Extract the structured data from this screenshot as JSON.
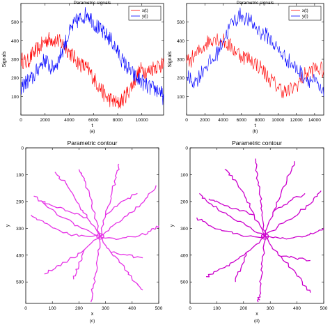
{
  "chart_data": [
    {
      "id": "a",
      "type": "line",
      "caption": "(a)",
      "title": "Parametric signals",
      "xlabel": "t",
      "ylabel": "Signals",
      "xlim": [
        0,
        11800
      ],
      "ylim": [
        0,
        600
      ],
      "xticks": [
        0,
        2000,
        4000,
        6000,
        8000,
        10000
      ],
      "yticks": [
        100,
        200,
        300,
        400,
        500
      ],
      "legend_position": "top-right",
      "series": [
        {
          "name": "x(t)",
          "color": "#ff0000",
          "x": [
            0,
            500,
            1000,
            1500,
            2000,
            2500,
            3000,
            3500,
            4000,
            4500,
            5000,
            5500,
            6000,
            6500,
            7000,
            7500,
            8000,
            8500,
            9000,
            9500,
            10000,
            10500,
            11000,
            11500,
            11800
          ],
          "y": [
            300,
            280,
            330,
            360,
            400,
            410,
            400,
            380,
            340,
            300,
            270,
            250,
            200,
            150,
            100,
            80,
            60,
            90,
            140,
            200,
            250,
            230,
            260,
            270,
            260
          ]
        },
        {
          "name": "y(t)",
          "color": "#0000ff",
          "x": [
            0,
            500,
            1000,
            1500,
            2000,
            2500,
            3000,
            3500,
            4000,
            4500,
            5000,
            5500,
            6000,
            6500,
            7000,
            7500,
            8000,
            8500,
            9000,
            9500,
            10000,
            10500,
            11000,
            11500,
            11800
          ],
          "y": [
            150,
            180,
            200,
            260,
            300,
            250,
            280,
            360,
            440,
            500,
            520,
            550,
            500,
            460,
            430,
            400,
            340,
            280,
            240,
            200,
            180,
            150,
            140,
            130,
            90
          ]
        }
      ]
    },
    {
      "id": "b",
      "type": "line",
      "caption": "(b)",
      "title": "Parametric signals",
      "xlabel": "t",
      "ylabel": "Signals",
      "xlim": [
        0,
        15000
      ],
      "ylim": [
        0,
        600
      ],
      "xticks": [
        0,
        2000,
        4000,
        6000,
        8000,
        10000,
        12000,
        14000
      ],
      "yticks": [
        100,
        200,
        300,
        400,
        500
      ],
      "legend_position": "top-right",
      "series": [
        {
          "name": "x(t)",
          "color": "#ff0000",
          "x": [
            0,
            1000,
            2000,
            3000,
            4000,
            5000,
            6000,
            7000,
            8000,
            9000,
            10000,
            11000,
            12000,
            13000,
            14000,
            15000
          ],
          "y": [
            280,
            320,
            380,
            420,
            400,
            360,
            320,
            300,
            260,
            200,
            150,
            120,
            160,
            220,
            250,
            240
          ]
        },
        {
          "name": "y(t)",
          "color": "#0000ff",
          "x": [
            0,
            1000,
            2000,
            3000,
            4000,
            5000,
            6000,
            7000,
            8000,
            9000,
            10000,
            11000,
            12000,
            13000,
            14000,
            15000
          ],
          "y": [
            200,
            180,
            260,
            300,
            400,
            500,
            540,
            500,
            450,
            420,
            350,
            300,
            250,
            200,
            180,
            100
          ]
        }
      ]
    },
    {
      "id": "c",
      "type": "contour",
      "caption": "(c)",
      "title": "Parametric contour",
      "xlabel": "x",
      "ylabel": "y",
      "xlim": [
        0,
        500
      ],
      "ylim": [
        0,
        580
      ],
      "xticks": [
        0,
        100,
        200,
        300,
        400,
        500
      ],
      "yticks": [
        0,
        100,
        200,
        300,
        400,
        500
      ],
      "color": "#e633e6",
      "center": [
        280,
        330
      ],
      "arms": [
        [
          [
            280,
            330
          ],
          [
            230,
            260
          ],
          [
            200,
            210
          ],
          [
            150,
            130
          ],
          [
            110,
            90
          ]
        ],
        [
          [
            280,
            330
          ],
          [
            260,
            250
          ],
          [
            240,
            180
          ],
          [
            220,
            120
          ],
          [
            200,
            80
          ]
        ],
        [
          [
            280,
            330
          ],
          [
            300,
            250
          ],
          [
            320,
            180
          ],
          [
            340,
            110
          ],
          [
            350,
            60
          ]
        ],
        [
          [
            280,
            330
          ],
          [
            340,
            280
          ],
          [
            400,
            240
          ],
          [
            450,
            190
          ],
          [
            490,
            140
          ]
        ],
        [
          [
            280,
            330
          ],
          [
            350,
            340
          ],
          [
            420,
            330
          ],
          [
            470,
            310
          ],
          [
            500,
            290
          ]
        ],
        [
          [
            280,
            330
          ],
          [
            320,
            390
          ],
          [
            370,
            440
          ],
          [
            410,
            500
          ],
          [
            440,
            530
          ]
        ],
        [
          [
            280,
            330
          ],
          [
            270,
            410
          ],
          [
            260,
            480
          ],
          [
            250,
            540
          ],
          [
            245,
            575
          ]
        ],
        [
          [
            280,
            330
          ],
          [
            220,
            380
          ],
          [
            160,
            420
          ],
          [
            110,
            450
          ],
          [
            70,
            470
          ]
        ],
        [
          [
            280,
            330
          ],
          [
            200,
            330
          ],
          [
            130,
            310
          ],
          [
            70,
            280
          ],
          [
            20,
            250
          ]
        ],
        [
          [
            280,
            330
          ],
          [
            210,
            300
          ],
          [
            140,
            260
          ],
          [
            80,
            220
          ],
          [
            30,
            180
          ]
        ],
        [
          [
            230,
            260
          ],
          [
            170,
            240
          ],
          [
            110,
            220
          ],
          [
            60,
            200
          ]
        ],
        [
          [
            300,
            250
          ],
          [
            360,
            200
          ],
          [
            420,
            170
          ]
        ],
        [
          [
            320,
            390
          ],
          [
            380,
            400
          ],
          [
            440,
            410
          ]
        ],
        [
          [
            220,
            380
          ],
          [
            200,
            440
          ],
          [
            180,
            490
          ]
        ]
      ]
    },
    {
      "id": "d",
      "type": "contour",
      "caption": "(d)",
      "title": "Parametric contour",
      "xlabel": "x",
      "ylabel": "y",
      "xlim": [
        0,
        500
      ],
      "ylim": [
        0,
        580
      ],
      "xticks": [
        0,
        100,
        200,
        300,
        400,
        500
      ],
      "yticks": [
        0,
        100,
        200,
        300,
        400,
        500
      ],
      "color": "#cc00cc",
      "center": [
        280,
        330
      ],
      "arms": [
        [
          [
            280,
            330
          ],
          [
            240,
            250
          ],
          [
            210,
            190
          ],
          [
            170,
            120
          ],
          [
            130,
            80
          ]
        ],
        [
          [
            280,
            330
          ],
          [
            270,
            240
          ],
          [
            260,
            160
          ],
          [
            250,
            90
          ],
          [
            245,
            40
          ]
        ],
        [
          [
            280,
            330
          ],
          [
            310,
            240
          ],
          [
            340,
            170
          ],
          [
            370,
            100
          ],
          [
            390,
            50
          ]
        ],
        [
          [
            280,
            330
          ],
          [
            350,
            280
          ],
          [
            410,
            240
          ],
          [
            460,
            200
          ],
          [
            490,
            160
          ]
        ],
        [
          [
            280,
            330
          ],
          [
            360,
            340
          ],
          [
            430,
            330
          ],
          [
            480,
            310
          ],
          [
            500,
            300
          ]
        ],
        [
          [
            280,
            330
          ],
          [
            330,
            400
          ],
          [
            380,
            450
          ],
          [
            420,
            500
          ],
          [
            450,
            540
          ]
        ],
        [
          [
            280,
            330
          ],
          [
            270,
            420
          ],
          [
            265,
            490
          ],
          [
            260,
            550
          ],
          [
            255,
            575
          ]
        ],
        [
          [
            280,
            330
          ],
          [
            210,
            390
          ],
          [
            150,
            430
          ],
          [
            100,
            460
          ],
          [
            60,
            480
          ]
        ],
        [
          [
            280,
            330
          ],
          [
            200,
            330
          ],
          [
            130,
            310
          ],
          [
            70,
            290
          ],
          [
            25,
            260
          ]
        ],
        [
          [
            280,
            330
          ],
          [
            210,
            290
          ],
          [
            140,
            250
          ],
          [
            80,
            210
          ],
          [
            35,
            170
          ]
        ],
        [
          [
            240,
            250
          ],
          [
            180,
            230
          ],
          [
            120,
            210
          ],
          [
            70,
            190
          ]
        ],
        [
          [
            310,
            240
          ],
          [
            370,
            200
          ],
          [
            430,
            170
          ]
        ],
        [
          [
            330,
            400
          ],
          [
            390,
            410
          ],
          [
            450,
            420
          ]
        ],
        [
          [
            210,
            390
          ],
          [
            190,
            450
          ],
          [
            170,
            500
          ]
        ]
      ]
    }
  ]
}
